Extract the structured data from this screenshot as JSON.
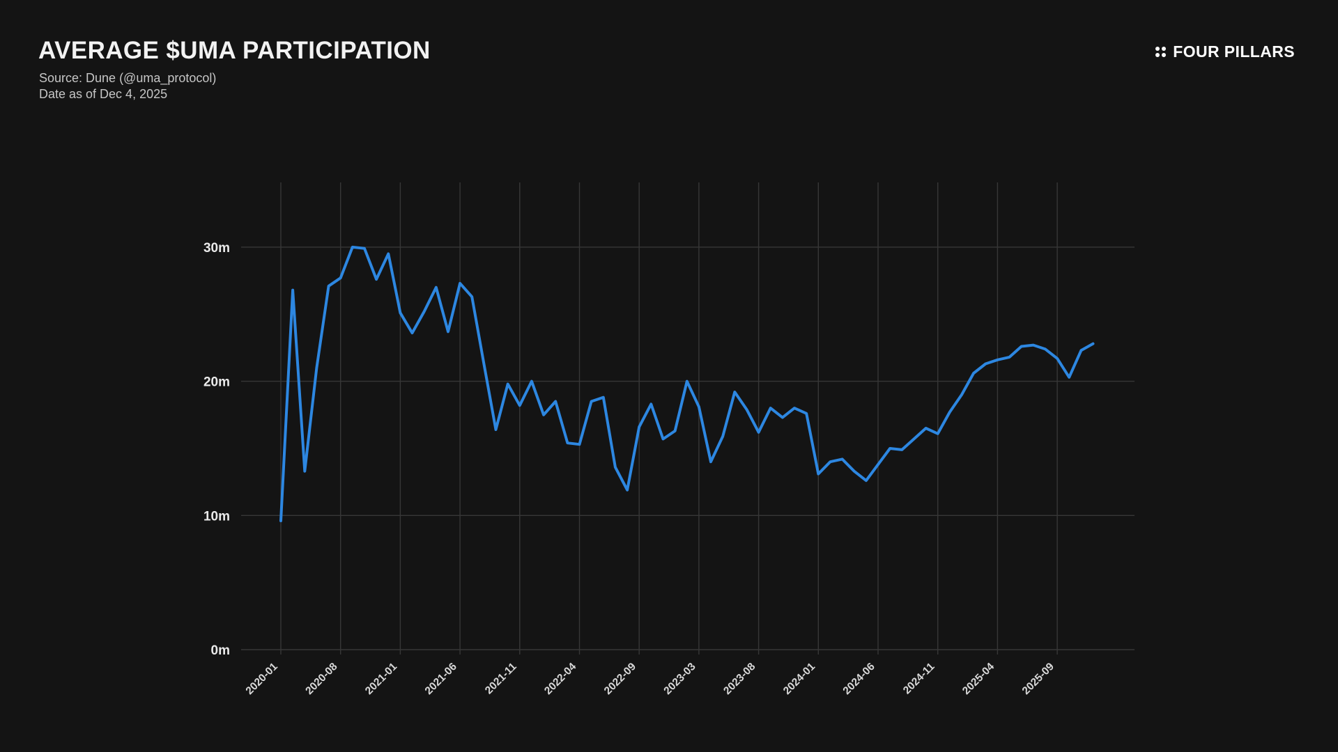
{
  "page": {
    "background": "#141414"
  },
  "header": {
    "title": "AVERAGE $UMA PARTICIPATION",
    "source": "Source: Dune (@uma_protocol)",
    "date": "Date as of Dec 4, 2025"
  },
  "brand": {
    "name": "FOUR PILLARS",
    "icon": "four-dots-2x2"
  },
  "colors": {
    "background": "#141414",
    "line": "#2d87e1",
    "grid": "#373737",
    "y_tick_text": "#eaeaea",
    "x_tick_text": "#d8d8d8",
    "title_text": "#f2f2f2",
    "subtitle_text": "#c6c6c6"
  },
  "chart_data": {
    "type": "line",
    "title": "AVERAGE $UMA PARTICIPATION",
    "unit": "m",
    "ylim": [
      0,
      35
    ],
    "grid": true,
    "legend": "none",
    "y_ticks": [
      {
        "value": 0,
        "label": "0m"
      },
      {
        "value": 10,
        "label": "10m"
      },
      {
        "value": 20,
        "label": "20m"
      },
      {
        "value": 30,
        "label": "30m"
      }
    ],
    "x_tick_every": 5,
    "x_tick_labels": [
      "2020-01",
      "2020-08",
      "2021-01",
      "2021-06",
      "2021-11",
      "2022-04",
      "2022-09",
      "2023-03",
      "2023-08",
      "2024-01",
      "2024-06",
      "2024-11",
      "2025-04",
      "2025-09"
    ],
    "values": [
      9.6,
      26.8,
      13.3,
      21.0,
      27.1,
      27.7,
      30.0,
      29.9,
      27.6,
      29.5,
      25.1,
      23.6,
      25.2,
      27.0,
      23.7,
      27.3,
      26.3,
      21.3,
      16.4,
      19.8,
      18.2,
      20.0,
      17.5,
      18.5,
      15.4,
      15.3,
      18.5,
      18.8,
      13.6,
      11.9,
      16.6,
      18.3,
      15.7,
      16.3,
      20.0,
      18.1,
      14.0,
      15.9,
      19.2,
      17.9,
      16.2,
      18.0,
      17.3,
      18.0,
      17.6,
      13.1,
      14.0,
      14.2,
      13.3,
      12.6,
      13.8,
      15.0,
      14.9,
      15.7,
      16.5,
      16.1,
      17.7,
      19.0,
      20.6,
      21.3,
      21.6,
      21.8,
      22.6,
      22.7,
      22.4,
      21.7,
      20.3,
      22.3,
      22.8
    ]
  }
}
